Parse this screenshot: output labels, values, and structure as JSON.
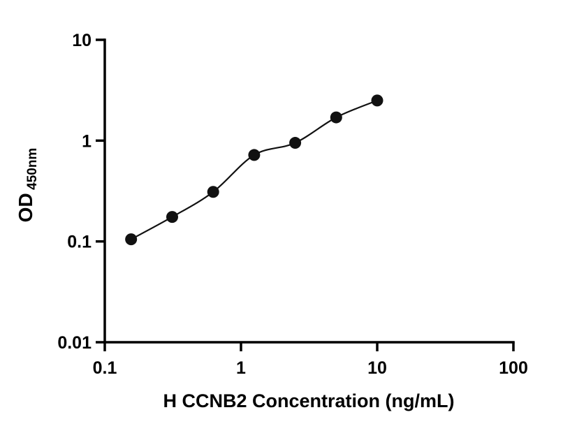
{
  "chart_data": {
    "type": "scatter",
    "title": "",
    "xlabel": "H CCNB2 Concentration (ng/mL)",
    "ylabel": "OD",
    "ylabel_sub": "450nm",
    "xscale": "log",
    "yscale": "log",
    "xlim": [
      0.1,
      100
    ],
    "ylim": [
      0.01,
      10
    ],
    "x": [
      0.156,
      0.3125,
      0.625,
      1.25,
      2.5,
      5,
      10
    ],
    "y": [
      0.105,
      0.175,
      0.31,
      0.72,
      0.95,
      1.7,
      2.5
    ],
    "x_ticks": [
      0.1,
      1,
      10,
      100
    ],
    "x_tick_labels": [
      "0.1",
      "1",
      "10",
      "100"
    ],
    "y_ticks": [
      0.01,
      0.1,
      1,
      10
    ],
    "y_tick_labels": [
      "0.01",
      "0.1",
      "1",
      "10"
    ],
    "grid": false,
    "legend": null,
    "marker_color": "#111111",
    "line_color": "#111111",
    "axis_color": "#000000",
    "background_color": "#ffffff"
  }
}
